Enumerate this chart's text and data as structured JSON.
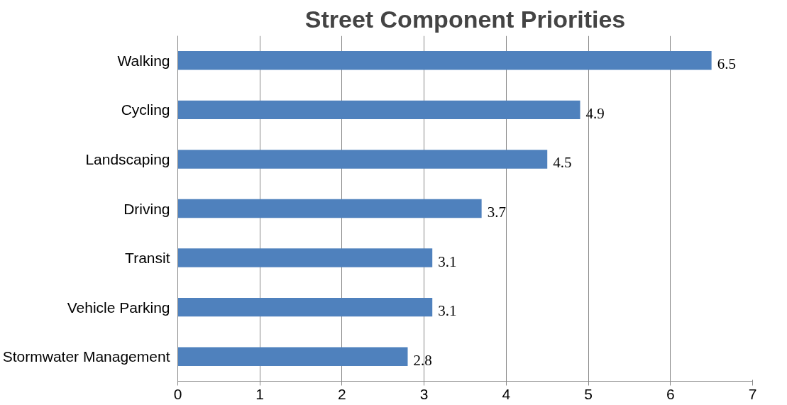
{
  "chart_data": {
    "type": "bar",
    "orientation": "horizontal",
    "title": "Street Component Priorities",
    "categories": [
      "Walking",
      "Cycling",
      "Landscaping",
      "Driving",
      "Transit",
      "Vehicle Parking",
      "Stormwater Management"
    ],
    "values": [
      6.5,
      4.9,
      4.5,
      3.7,
      3.1,
      3.1,
      2.8
    ],
    "color": "#4f81bd",
    "xlim": [
      0,
      7
    ],
    "xticks": [
      0,
      1,
      2,
      3,
      4,
      5,
      6,
      7
    ],
    "grid": "x",
    "data_labels": true
  }
}
